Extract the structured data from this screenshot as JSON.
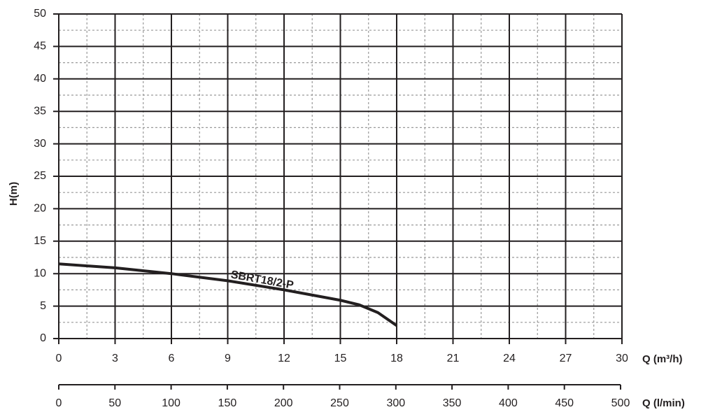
{
  "chart_data": {
    "type": "line",
    "x": [
      0,
      3,
      6,
      9,
      12,
      15,
      16,
      17,
      18
    ],
    "series": [
      {
        "name": "SBRT18/2-P",
        "color": "#231f20",
        "values": [
          11.5,
          10.9,
          10.0,
          8.9,
          7.5,
          5.9,
          5.2,
          4.0,
          2.0
        ]
      }
    ],
    "xlim": [
      0,
      30
    ],
    "xticks": [
      0,
      3,
      6,
      9,
      12,
      15,
      18,
      21,
      24,
      27,
      30
    ],
    "ylim": [
      0,
      50
    ],
    "yticks": [
      0,
      5,
      10,
      15,
      20,
      25,
      30,
      35,
      40,
      45,
      50
    ],
    "x2lim": [
      0,
      500
    ],
    "x2ticks": [
      0,
      50,
      100,
      150,
      200,
      250,
      300,
      350,
      400,
      450,
      500
    ],
    "ylabel": "H(m)",
    "xlabel": "Q  (m³/h)",
    "x2label": "Q (l/min)",
    "grid": true,
    "minor_grid": true
  }
}
